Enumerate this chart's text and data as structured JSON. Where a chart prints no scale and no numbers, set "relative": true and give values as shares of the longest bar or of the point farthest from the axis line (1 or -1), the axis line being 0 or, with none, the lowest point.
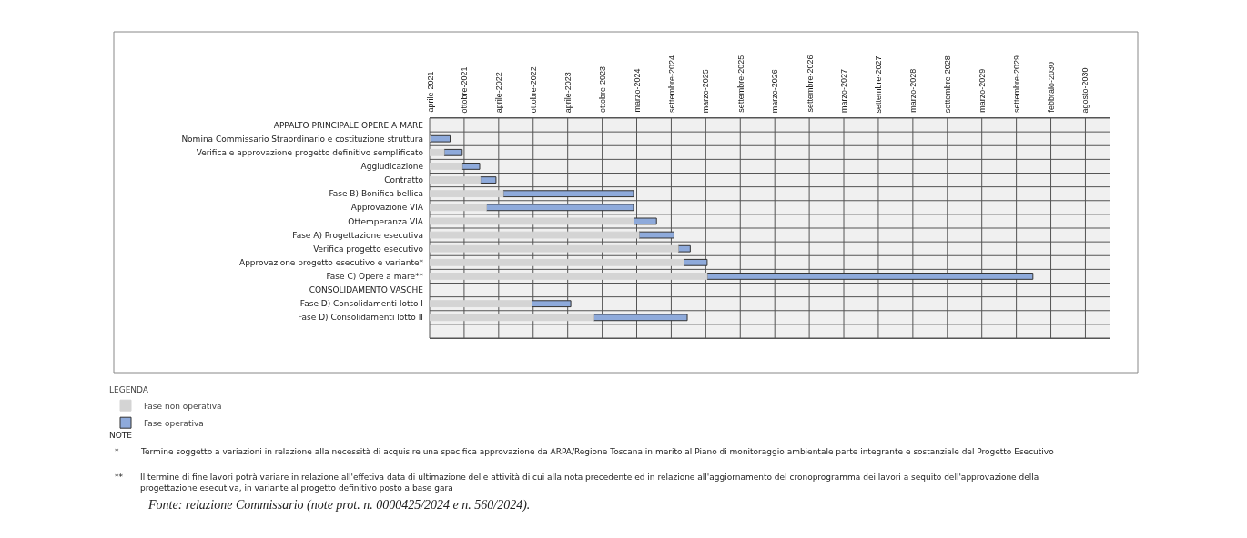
{
  "chart_data": {
    "type": "bar",
    "orientation": "horizontal",
    "stacked": true,
    "relative": true,
    "grid": true,
    "legend": "bottom left",
    "legend_title": "LEGENDA",
    "categories": [
      "APPALTO PRINCIPALE OPERE A MARE",
      "Nomina Commissario Straordinario e costituzione struttura",
      "Verifica e approvazione progetto definitivo semplificato",
      "Aggiudicazione",
      "Contratto",
      "Fase B) Bonifica bellica",
      "Approvazione VIA",
      "Ottemperanza VIA",
      "Fase A) Progettazione esecutiva",
      "Verifica progetto esecutivo",
      "Approvazione progetto esecutivo e variante*",
      "Fase C) Opere a mare**",
      "CONSOLIDAMENTO VASCHE",
      "Fase D) Consolidamenti lotto I",
      "Fase D) Consolidamenti lotto II",
      null
    ],
    "series": [
      {
        "name": "Fase non operativa",
        "color": "#d4d4d4",
        "values": [
          null,
          0,
          0.024,
          0.054,
          0.084,
          0.122,
          0.094,
          0.338,
          0.347,
          0.412,
          0.421,
          0.46,
          null,
          0.169,
          0.272,
          null
        ]
      },
      {
        "name": "Fase operativa",
        "color": "#8eaadb",
        "values": [
          null,
          0.034,
          0.03,
          0.029,
          0.026,
          0.216,
          0.244,
          0.038,
          0.058,
          0.02,
          0.039,
          0.54,
          null,
          0.065,
          0.155,
          null
        ]
      }
    ],
    "annotations": [
      "aprile-2021",
      "ottobre-2021",
      "aprile-2022",
      "ottobre-2022",
      "aprile-2023",
      "ottobre-2023",
      "marzo-2024",
      "settembre-2024",
      "marzo-2025",
      "settembre-2025",
      "marzo-2026",
      "settembre-2026",
      "marzo-2027",
      "settembre-2027",
      "marzo-2028",
      "settembre-2028",
      "marzo-2029",
      "settembre-2029",
      "febbraio-2030",
      "agosto-2030",
      "NOTE",
      "*",
      "Termine soggetto a variazioni in relazione alla necessità di acquisire una specifica approvazione da ARPA/Regione Toscana in merito al Piano di monitoraggio ambientale parte integrante e sostanziale del Progetto Esecutivo",
      "**",
      "Il termine di fine lavori potrà variare in relazione all'effetiva data di ultimazione delle attività di cui alla nota precedente ed in relazione all'aggiornamento del cronoprogramma dei lavori a sequito dell'approvazione della progettazione esecutiva, in variante al progetto definitivo posto a base gara",
      "Fonte: relazione Commissario (note prot. n. 0000425/2024 e n. 560/2024)."
    ]
  }
}
